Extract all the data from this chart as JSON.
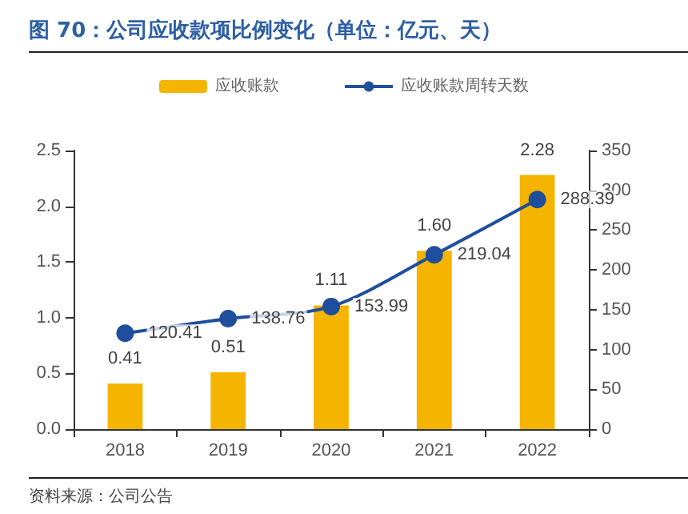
{
  "chart_data": {
    "type": "bar",
    "title": "图 70：公司应收款项比例变化（单位：亿元、天）",
    "categories": [
      "2018",
      "2019",
      "2020",
      "2021",
      "2022"
    ],
    "series": [
      {
        "name": "应收账款",
        "color": "#f5b400",
        "values": [
          0.41,
          0.51,
          1.11,
          1.6,
          2.28
        ],
        "value_labels": [
          "0.41",
          "0.51",
          "1.11",
          "1.60",
          "2.28"
        ]
      },
      {
        "name": "应收账款周转天数",
        "type": "line",
        "axis": "y2",
        "color": "#1f4e9c",
        "values": [
          120.41,
          138.76,
          153.99,
          219.04,
          288.39
        ],
        "value_labels": [
          "120.41",
          "138.76",
          "153.99",
          "219.04",
          "288.39"
        ]
      }
    ],
    "ylim": [
      0,
      2.5
    ],
    "yticks": [
      {
        "value": 0,
        "label": "0.0"
      },
      0.5,
      {
        "value": 1,
        "label": "1.0"
      },
      1.5,
      {
        "value": 2,
        "label": "2.0"
      },
      2.5
    ],
    "y2lim": [
      0,
      350
    ],
    "y2ticks": [
      0,
      50,
      100,
      150,
      200,
      250,
      300,
      350
    ],
    "legend": "top",
    "marker": "circle",
    "grid": false,
    "annotations": [
      "资料来源：公司公告"
    ]
  }
}
